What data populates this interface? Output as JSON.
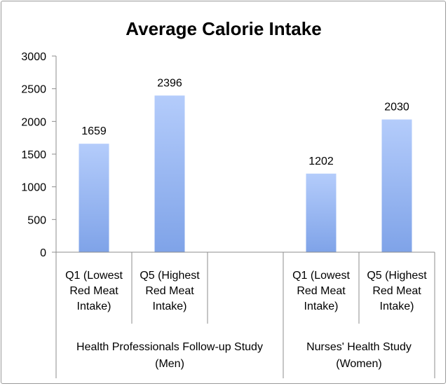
{
  "chart_data": {
    "type": "bar",
    "title": "Average Calorie Intake",
    "xlabel": "",
    "ylabel": "",
    "ylim": [
      0,
      3000
    ],
    "yticks": [
      0,
      500,
      1000,
      1500,
      2000,
      2500,
      3000
    ],
    "grid": false,
    "legend": "none",
    "bar_color": "#7fa3e8",
    "bar_color_light": "#b4ccfb",
    "categories": [
      {
        "label": "Q1 (Lowest Red Meat Intake)",
        "lines": [
          "Q1 (Lowest",
          "Red Meat",
          "Intake)"
        ]
      },
      {
        "label": "Q5 (Highest Red Meat Intake)",
        "lines": [
          "Q5 (Highest",
          "Red Meat",
          "Intake)"
        ]
      },
      {
        "label": "",
        "lines": []
      },
      {
        "label": "Q1 (Lowest Red Meat Intake)",
        "lines": [
          "Q1 (Lowest",
          "Red Meat",
          "Intake)"
        ]
      },
      {
        "label": "Q5 (Highest Red Meat Intake)",
        "lines": [
          "Q5 (Highest",
          "Red Meat",
          "Intake)"
        ]
      }
    ],
    "values": [
      1659,
      2396,
      null,
      1202,
      2030
    ],
    "data_labels": [
      "1659",
      "2396",
      "",
      "1202",
      "2030"
    ],
    "groups": [
      {
        "label": "Health Professionals Follow-up Study (Men)",
        "lines": [
          "Health Professionals Follow-up Study",
          "(Men)"
        ],
        "span": [
          0,
          2
        ]
      },
      {
        "label": "Nurses' Health Study (Women)",
        "lines": [
          "Nurses' Health Study",
          "(Women)"
        ],
        "span": [
          3,
          4
        ]
      }
    ]
  }
}
